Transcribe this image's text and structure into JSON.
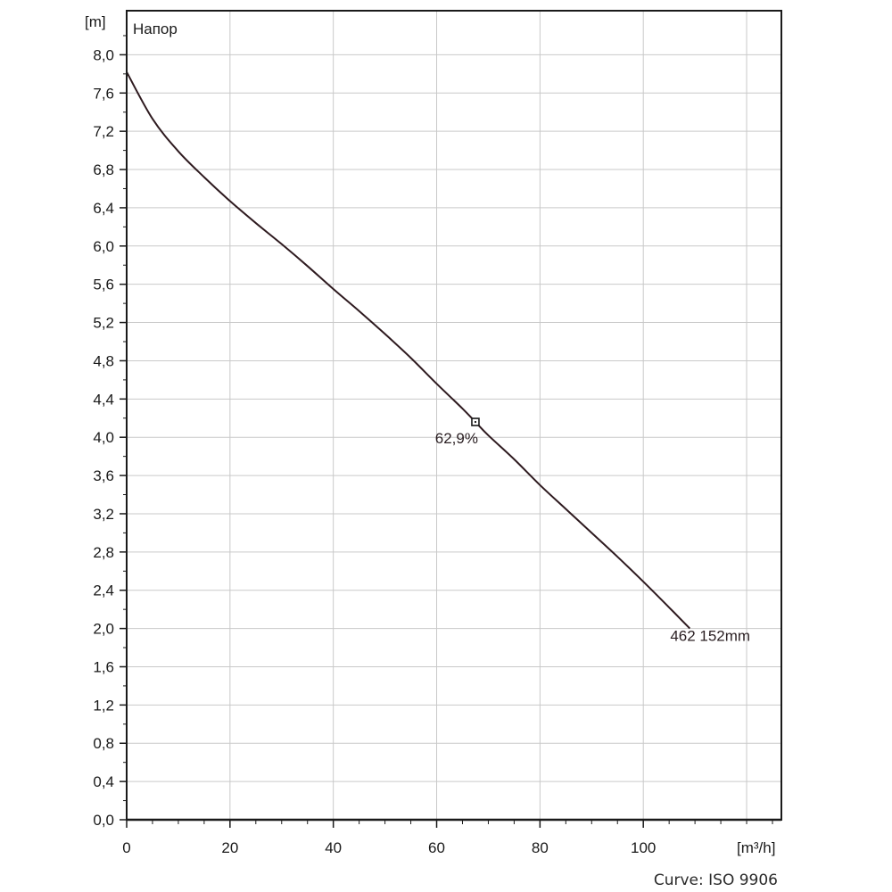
{
  "chart_data": {
    "type": "line",
    "title": "Напор",
    "ylabel": "[m]",
    "xlabel": "[m³/h]",
    "footer": "Curve: ISO 9906",
    "xlim": [
      0,
      127
    ],
    "ylim": [
      0,
      8.4
    ],
    "x_ticks": [
      0,
      20,
      40,
      60,
      80,
      100
    ],
    "y_ticks": [
      "0,0",
      "0,4",
      "0,8",
      "1,2",
      "1,6",
      "2,0",
      "2,4",
      "2,8",
      "3,2",
      "3,6",
      "4,0",
      "4,4",
      "4,8",
      "5,2",
      "5,6",
      "6,0",
      "6,4",
      "6,8",
      "7,2",
      "7,6",
      "8,0"
    ],
    "grid": true,
    "series": [
      {
        "name": "462 152mm",
        "color": "#2e1a1f",
        "x": [
          0,
          5,
          10,
          15,
          20,
          25,
          30,
          35,
          40,
          45,
          50,
          55,
          60,
          65,
          67.5,
          70,
          75,
          80,
          85,
          90,
          95,
          100,
          105,
          109
        ],
        "y": [
          7.82,
          7.33,
          6.99,
          6.72,
          6.47,
          6.24,
          6.02,
          5.79,
          5.55,
          5.32,
          5.08,
          4.83,
          4.56,
          4.3,
          4.16,
          4.02,
          3.77,
          3.5,
          3.25,
          3.0,
          2.75,
          2.49,
          2.22,
          2.0
        ]
      }
    ],
    "annotations": [
      {
        "text": "62,9%",
        "x": 67.5,
        "y": 4.16,
        "marker": "square"
      },
      {
        "text": "462 152mm",
        "x": 109,
        "y": 2.0
      }
    ]
  }
}
